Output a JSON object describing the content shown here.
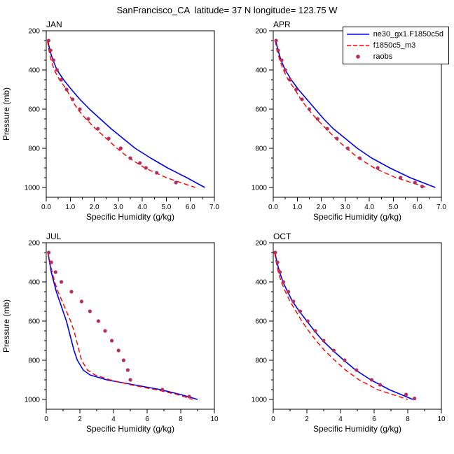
{
  "page_title": "SanFrancisco_CA  latitude= 37 N longitude= 123.75 W",
  "legend": {
    "position": "top-right",
    "entries": [
      {
        "label": "ne30_gx1.F1850c5d",
        "marker": "line-solid",
        "color": "#0000ee"
      },
      {
        "label": "f1850c5_m3",
        "marker": "line-dashed",
        "color": "#ff0000"
      },
      {
        "label": "raobs",
        "marker": "dot",
        "color": "#b03060"
      }
    ]
  },
  "chart_data": [
    {
      "type": "line",
      "title": "JAN",
      "xlabel": "Specific Humidity (g/kg)",
      "ylabel": "Pressure (mb)",
      "xlim": [
        0,
        7
      ],
      "ylim": [
        200,
        1050
      ],
      "y_inverted": true,
      "grid": false,
      "xticks": [
        0,
        1,
        2,
        3,
        4,
        5,
        6,
        7
      ],
      "xtick_labels": [
        "0.0",
        "1.0",
        "2.0",
        "3.0",
        "4.0",
        "5.0",
        "6.0",
        "7.0"
      ],
      "x_minor_step": 0.5,
      "yticks": [
        200,
        400,
        600,
        800,
        1000
      ],
      "y_minor_step": 50,
      "point_format": "[pressure_mb, specific_humidity_g_per_kg]",
      "series": [
        {
          "name": "ne30_gx1.F1850c5d",
          "style": "solid",
          "color": "#0000ee",
          "points": [
            [
              250,
              0.07
            ],
            [
              300,
              0.15
            ],
            [
              350,
              0.28
            ],
            [
              400,
              0.45
            ],
            [
              450,
              0.72
            ],
            [
              500,
              1.05
            ],
            [
              550,
              1.4
            ],
            [
              600,
              1.8
            ],
            [
              650,
              2.25
            ],
            [
              700,
              2.7
            ],
            [
              750,
              3.2
            ],
            [
              800,
              3.7
            ],
            [
              850,
              4.35
            ],
            [
              900,
              5.05
            ],
            [
              950,
              5.85
            ],
            [
              1000,
              6.6
            ]
          ]
        },
        {
          "name": "f1850c5_m3",
          "style": "dashed",
          "color": "#ff0000",
          "points": [
            [
              250,
              0.05
            ],
            [
              300,
              0.11
            ],
            [
              350,
              0.2
            ],
            [
              400,
              0.33
            ],
            [
              450,
              0.55
            ],
            [
              500,
              0.85
            ],
            [
              550,
              1.05
            ],
            [
              600,
              1.3
            ],
            [
              650,
              1.65
            ],
            [
              700,
              2.05
            ],
            [
              750,
              2.5
            ],
            [
              800,
              2.95
            ],
            [
              850,
              3.45
            ],
            [
              900,
              4.1
            ],
            [
              950,
              5.0
            ],
            [
              1000,
              6.2
            ]
          ]
        },
        {
          "name": "raobs",
          "style": "dots",
          "color": "#b03060",
          "points": [
            [
              250,
              0.1
            ],
            [
              300,
              0.18
            ],
            [
              350,
              0.3
            ],
            [
              400,
              0.45
            ],
            [
              450,
              0.62
            ],
            [
              500,
              0.85
            ],
            [
              550,
              1.1
            ],
            [
              600,
              1.4
            ],
            [
              650,
              1.75
            ],
            [
              700,
              2.15
            ],
            [
              750,
              2.6
            ],
            [
              800,
              3.1
            ],
            [
              850,
              3.5
            ],
            [
              875,
              3.9
            ],
            [
              900,
              4.15
            ],
            [
              925,
              4.6
            ],
            [
              975,
              5.4
            ]
          ]
        }
      ]
    },
    {
      "type": "line",
      "title": "APR",
      "xlabel": "Specific Humidity (g/kg)",
      "ylabel": "Pressure (mb)",
      "xlim": [
        0,
        7
      ],
      "ylim": [
        200,
        1050
      ],
      "y_inverted": true,
      "grid": false,
      "xticks": [
        0,
        1,
        2,
        3,
        4,
        5,
        6,
        7
      ],
      "xtick_labels": [
        "0.0",
        "1.0",
        "2.0",
        "3.0",
        "4.0",
        "5.0",
        "6.0",
        "7.0"
      ],
      "x_minor_step": 0.5,
      "yticks": [
        200,
        400,
        600,
        800,
        1000
      ],
      "y_minor_step": 50,
      "point_format": "[pressure_mb, specific_humidity_g_per_kg]",
      "series": [
        {
          "name": "ne30_gx1.F1850c5d",
          "style": "solid",
          "color": "#0000ee",
          "points": [
            [
              250,
              0.1
            ],
            [
              300,
              0.2
            ],
            [
              350,
              0.32
            ],
            [
              400,
              0.5
            ],
            [
              450,
              0.75
            ],
            [
              500,
              1.05
            ],
            [
              550,
              1.4
            ],
            [
              600,
              1.75
            ],
            [
              650,
              2.1
            ],
            [
              700,
              2.5
            ],
            [
              750,
              3.0
            ],
            [
              800,
              3.5
            ],
            [
              850,
              4.1
            ],
            [
              900,
              4.85
            ],
            [
              950,
              5.7
            ],
            [
              1000,
              6.75
            ]
          ]
        },
        {
          "name": "f1850c5_m3",
          "style": "dashed",
          "color": "#ff0000",
          "points": [
            [
              250,
              0.08
            ],
            [
              300,
              0.16
            ],
            [
              350,
              0.27
            ],
            [
              400,
              0.42
            ],
            [
              450,
              0.62
            ],
            [
              500,
              0.9
            ],
            [
              550,
              1.15
            ],
            [
              600,
              1.45
            ],
            [
              650,
              1.8
            ],
            [
              700,
              2.2
            ],
            [
              750,
              2.6
            ],
            [
              800,
              3.05
            ],
            [
              850,
              3.55
            ],
            [
              900,
              4.2
            ],
            [
              950,
              5.1
            ],
            [
              1000,
              6.4
            ]
          ]
        },
        {
          "name": "raobs",
          "style": "dots",
          "color": "#b03060",
          "points": [
            [
              250,
              0.12
            ],
            [
              300,
              0.2
            ],
            [
              350,
              0.35
            ],
            [
              400,
              0.5
            ],
            [
              450,
              0.7
            ],
            [
              500,
              0.95
            ],
            [
              550,
              1.2
            ],
            [
              600,
              1.5
            ],
            [
              650,
              1.85
            ],
            [
              700,
              2.25
            ],
            [
              750,
              2.65
            ],
            [
              800,
              3.1
            ],
            [
              850,
              3.6
            ],
            [
              900,
              4.35
            ],
            [
              950,
              5.3
            ],
            [
              975,
              5.9
            ],
            [
              995,
              6.2
            ]
          ]
        }
      ]
    },
    {
      "type": "line",
      "title": "JUL",
      "xlabel": "Specific Humidity (g/kg)",
      "ylabel": "Pressure (mb)",
      "xlim": [
        0,
        10
      ],
      "ylim": [
        200,
        1050
      ],
      "y_inverted": true,
      "grid": false,
      "xticks": [
        0,
        2,
        4,
        6,
        8,
        10
      ],
      "xtick_labels": [
        "0",
        "2",
        "4",
        "6",
        "8",
        "10"
      ],
      "x_minor_step": 1,
      "yticks": [
        200,
        400,
        600,
        800,
        1000
      ],
      "y_minor_step": 50,
      "point_format": "[pressure_mb, specific_humidity_g_per_kg]",
      "series": [
        {
          "name": "ne30_gx1.F1850c5d",
          "style": "solid",
          "color": "#0000ee",
          "points": [
            [
              250,
              0.1
            ],
            [
              300,
              0.2
            ],
            [
              350,
              0.3
            ],
            [
              400,
              0.45
            ],
            [
              450,
              0.6
            ],
            [
              500,
              0.8
            ],
            [
              550,
              1.0
            ],
            [
              600,
              1.2
            ],
            [
              650,
              1.35
            ],
            [
              700,
              1.5
            ],
            [
              750,
              1.65
            ],
            [
              800,
              1.85
            ],
            [
              850,
              2.2
            ],
            [
              875,
              2.6
            ],
            [
              900,
              3.6
            ],
            [
              925,
              5.2
            ],
            [
              950,
              6.8
            ],
            [
              975,
              8.0
            ],
            [
              1000,
              9.0
            ]
          ]
        },
        {
          "name": "f1850c5_m3",
          "style": "dashed",
          "color": "#ff0000",
          "points": [
            [
              250,
              0.1
            ],
            [
              300,
              0.22
            ],
            [
              350,
              0.35
            ],
            [
              400,
              0.5
            ],
            [
              450,
              0.7
            ],
            [
              500,
              0.95
            ],
            [
              550,
              1.2
            ],
            [
              600,
              1.45
            ],
            [
              650,
              1.65
            ],
            [
              700,
              1.8
            ],
            [
              750,
              1.95
            ],
            [
              800,
              2.1
            ],
            [
              850,
              2.45
            ],
            [
              875,
              2.9
            ],
            [
              900,
              3.8
            ],
            [
              925,
              5.0
            ],
            [
              950,
              6.5
            ],
            [
              975,
              7.8
            ],
            [
              1000,
              8.7
            ]
          ]
        },
        {
          "name": "raobs",
          "style": "dots",
          "color": "#b03060",
          "points": [
            [
              250,
              0.15
            ],
            [
              300,
              0.3
            ],
            [
              350,
              0.55
            ],
            [
              400,
              0.9
            ],
            [
              450,
              1.5
            ],
            [
              500,
              2.1
            ],
            [
              550,
              2.6
            ],
            [
              600,
              3.1
            ],
            [
              650,
              3.5
            ],
            [
              700,
              3.9
            ],
            [
              750,
              4.3
            ],
            [
              800,
              4.6
            ],
            [
              850,
              4.85
            ],
            [
              900,
              5.0
            ],
            [
              950,
              6.9
            ],
            [
              985,
              8.5
            ]
          ]
        }
      ]
    },
    {
      "type": "line",
      "title": "OCT",
      "xlabel": "Specific Humidity (g/kg)",
      "ylabel": "Pressure (mb)",
      "xlim": [
        0,
        10
      ],
      "ylim": [
        200,
        1050
      ],
      "y_inverted": true,
      "grid": false,
      "xticks": [
        0,
        2,
        4,
        6,
        8,
        10
      ],
      "xtick_labels": [
        "0",
        "2",
        "4",
        "6",
        "8",
        "10"
      ],
      "x_minor_step": 1,
      "yticks": [
        200,
        400,
        600,
        800,
        1000
      ],
      "y_minor_step": 50,
      "point_format": "[pressure_mb, specific_humidity_g_per_kg]",
      "series": [
        {
          "name": "ne30_gx1.F1850c5d",
          "style": "solid",
          "color": "#0000ee",
          "points": [
            [
              250,
              0.1
            ],
            [
              300,
              0.22
            ],
            [
              350,
              0.38
            ],
            [
              400,
              0.58
            ],
            [
              450,
              0.85
            ],
            [
              500,
              1.15
            ],
            [
              550,
              1.55
            ],
            [
              600,
              2.0
            ],
            [
              650,
              2.45
            ],
            [
              700,
              2.95
            ],
            [
              750,
              3.55
            ],
            [
              800,
              4.2
            ],
            [
              850,
              4.9
            ],
            [
              900,
              5.8
            ],
            [
              950,
              6.9
            ],
            [
              1000,
              8.3
            ]
          ]
        },
        {
          "name": "f1850c5_m3",
          "style": "dashed",
          "color": "#ff0000",
          "points": [
            [
              250,
              0.08
            ],
            [
              300,
              0.18
            ],
            [
              350,
              0.3
            ],
            [
              400,
              0.48
            ],
            [
              450,
              0.72
            ],
            [
              500,
              1.0
            ],
            [
              550,
              1.35
            ],
            [
              600,
              1.7
            ],
            [
              650,
              2.1
            ],
            [
              700,
              2.55
            ],
            [
              750,
              3.05
            ],
            [
              800,
              3.65
            ],
            [
              850,
              4.3
            ],
            [
              900,
              5.1
            ],
            [
              950,
              6.2
            ],
            [
              1000,
              8.0
            ]
          ]
        },
        {
          "name": "raobs",
          "style": "dots",
          "color": "#b03060",
          "points": [
            [
              250,
              0.12
            ],
            [
              300,
              0.25
            ],
            [
              350,
              0.4
            ],
            [
              400,
              0.6
            ],
            [
              450,
              0.9
            ],
            [
              500,
              1.2
            ],
            [
              550,
              1.6
            ],
            [
              600,
              2.05
            ],
            [
              650,
              2.5
            ],
            [
              700,
              3.0
            ],
            [
              750,
              3.6
            ],
            [
              800,
              4.25
            ],
            [
              850,
              4.95
            ],
            [
              900,
              5.85
            ],
            [
              925,
              6.35
            ],
            [
              975,
              7.9
            ],
            [
              995,
              8.4
            ]
          ]
        }
      ]
    }
  ]
}
